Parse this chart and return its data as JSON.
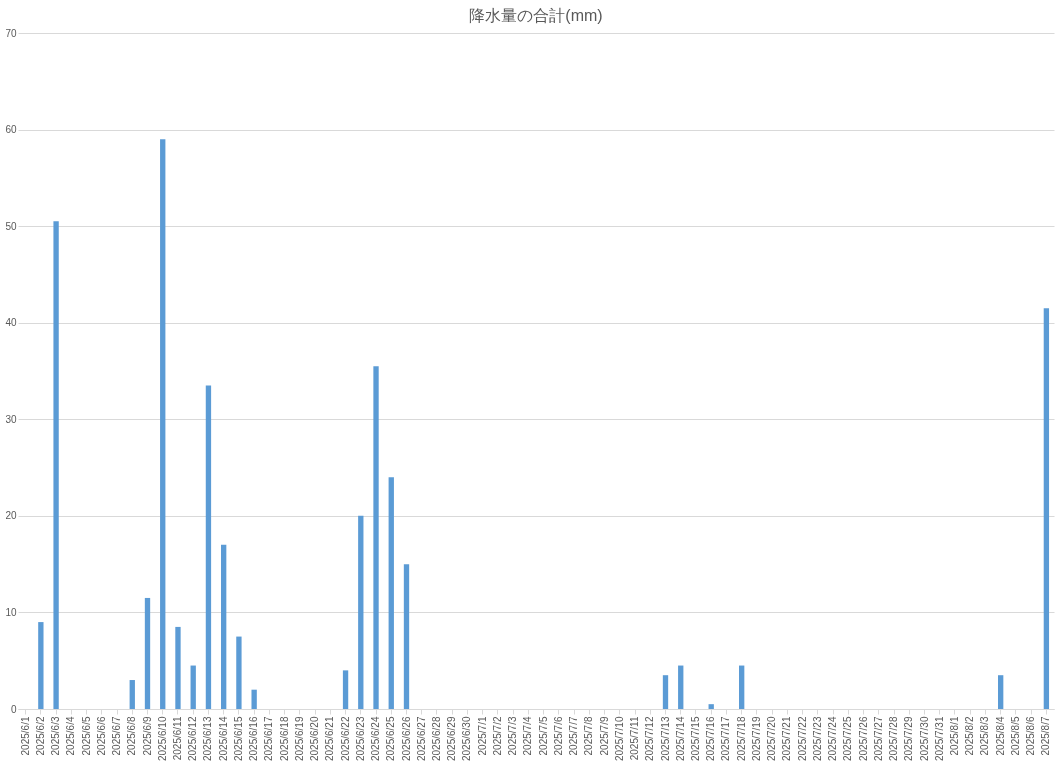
{
  "chart_data": {
    "type": "bar",
    "title": "降水量の合計(mm)",
    "categories": [
      "2025/6/1",
      "2025/6/2",
      "2025/6/3",
      "2025/6/4",
      "2025/6/5",
      "2025/6/6",
      "2025/6/7",
      "2025/6/8",
      "2025/6/9",
      "2025/6/10",
      "2025/6/11",
      "2025/6/12",
      "2025/6/13",
      "2025/6/14",
      "2025/6/15",
      "2025/6/16",
      "2025/6/17",
      "2025/6/18",
      "2025/6/19",
      "2025/6/20",
      "2025/6/21",
      "2025/6/22",
      "2025/6/23",
      "2025/6/24",
      "2025/6/25",
      "2025/6/26",
      "2025/6/27",
      "2025/6/28",
      "2025/6/29",
      "2025/6/30",
      "2025/7/1",
      "2025/7/2",
      "2025/7/3",
      "2025/7/4",
      "2025/7/5",
      "2025/7/6",
      "2025/7/7",
      "2025/7/8",
      "2025/7/9",
      "2025/7/10",
      "2025/7/11",
      "2025/7/12",
      "2025/7/13",
      "2025/7/14",
      "2025/7/15",
      "2025/7/16",
      "2025/7/17",
      "2025/7/18",
      "2025/7/19",
      "2025/7/20",
      "2025/7/21",
      "2025/7/22",
      "2025/7/23",
      "2025/7/24",
      "2025/7/25",
      "2025/7/26",
      "2025/7/27",
      "2025/7/28",
      "2025/7/29",
      "2025/7/30",
      "2025/7/31",
      "2025/8/1",
      "2025/8/2",
      "2025/8/3",
      "2025/8/4",
      "2025/8/5",
      "2025/8/6",
      "2025/8/7"
    ],
    "values": [
      0,
      9,
      50.5,
      0,
      0,
      0,
      0,
      3,
      11.5,
      59,
      8.5,
      4.5,
      33.5,
      17,
      7.5,
      2,
      0,
      0,
      0,
      0,
      0,
      4,
      20,
      35.5,
      24,
      15,
      0,
      0,
      0,
      0,
      0,
      0,
      0,
      0,
      0,
      0,
      0,
      0,
      0,
      0,
      0,
      0,
      3.5,
      4.5,
      0,
      0.5,
      0,
      4.5,
      0,
      0,
      0,
      0,
      0,
      0,
      0,
      0,
      0,
      0,
      0,
      0,
      0,
      0,
      0,
      0,
      3.5,
      0,
      0,
      41.5
    ],
    "color": "#5b9bd5",
    "ylim": [
      0,
      70
    ],
    "yticks": [
      0,
      10,
      20,
      30,
      40,
      50,
      60,
      70
    ],
    "grid": "y"
  }
}
